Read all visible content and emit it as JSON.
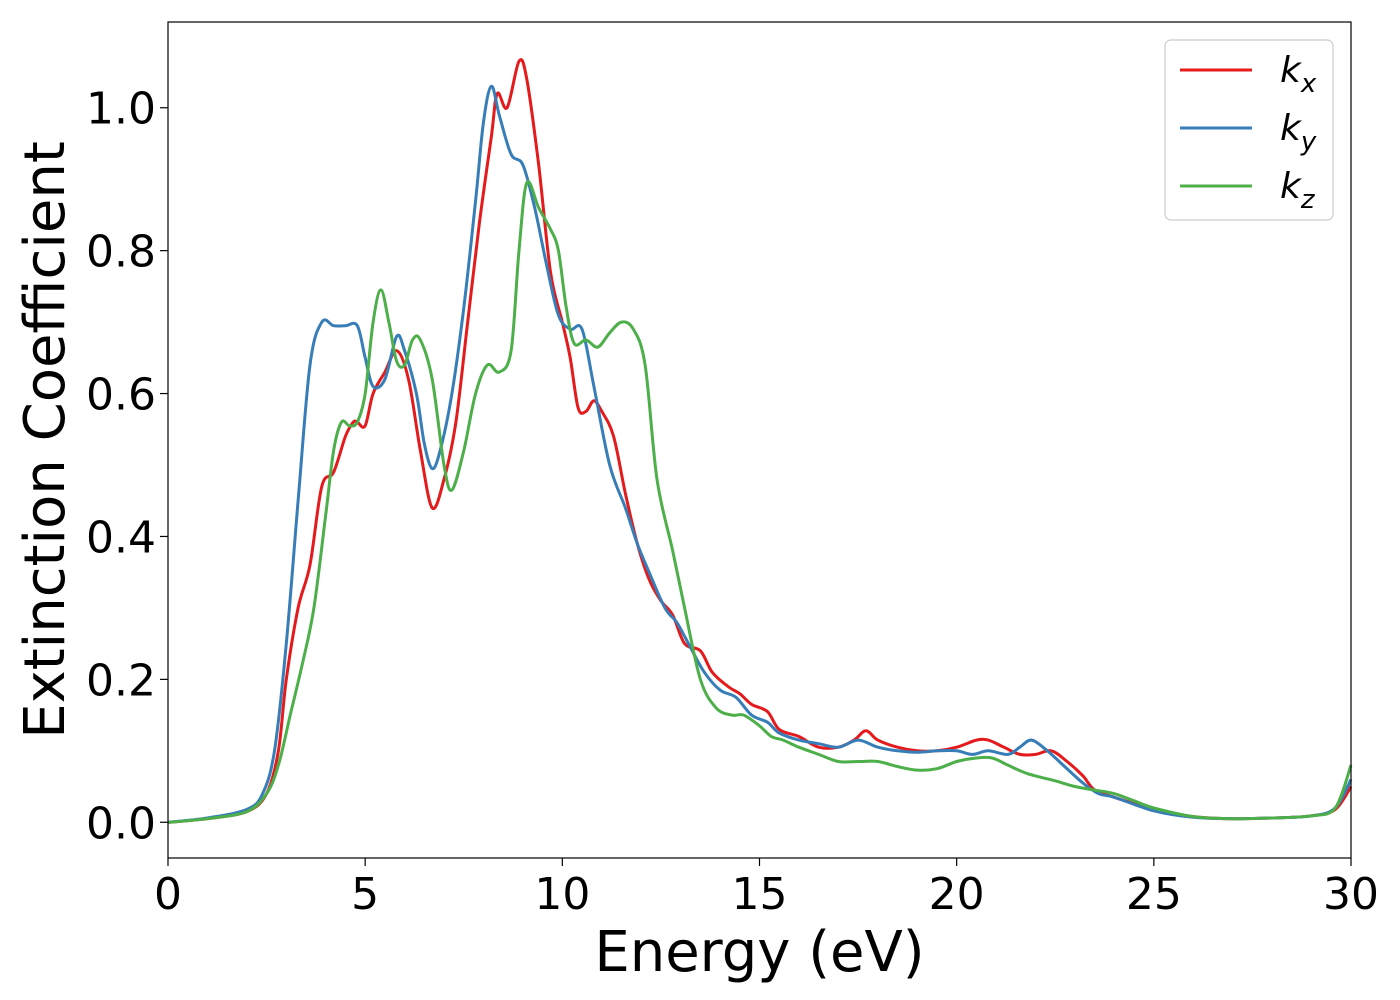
{
  "chart_data": {
    "type": "line",
    "xlabel": "Energy (eV)",
    "ylabel": "Extinction Coefficient",
    "xlim": [
      0,
      30
    ],
    "ylim": [
      -0.05,
      1.12
    ],
    "xticks": [
      0,
      5,
      10,
      15,
      20,
      25,
      30
    ],
    "xtick_labels": [
      "0",
      "5",
      "10",
      "15",
      "20",
      "25",
      "30"
    ],
    "yticks": [
      0.0,
      0.2,
      0.4,
      0.6,
      0.8,
      1.0
    ],
    "ytick_labels": [
      "0.0",
      "0.2",
      "0.4",
      "0.6",
      "0.8",
      "1.0"
    ],
    "grid": false,
    "legend_position": "top-right",
    "series": [
      {
        "name": "k_x",
        "label_base": "k",
        "label_sub": "x",
        "color": "#e41a1c",
        "points": [
          [
            0,
            0.0
          ],
          [
            1,
            0.005
          ],
          [
            2,
            0.015
          ],
          [
            2.5,
            0.04
          ],
          [
            2.8,
            0.1
          ],
          [
            3,
            0.2
          ],
          [
            3.3,
            0.3
          ],
          [
            3.6,
            0.36
          ],
          [
            3.9,
            0.47
          ],
          [
            4.2,
            0.49
          ],
          [
            4.5,
            0.54
          ],
          [
            4.7,
            0.56
          ],
          [
            4.8,
            0.56
          ],
          [
            5.0,
            0.555
          ],
          [
            5.2,
            0.6
          ],
          [
            5.5,
            0.63
          ],
          [
            5.8,
            0.66
          ],
          [
            6.1,
            0.62
          ],
          [
            6.4,
            0.52
          ],
          [
            6.7,
            0.44
          ],
          [
            7.0,
            0.48
          ],
          [
            7.3,
            0.56
          ],
          [
            7.6,
            0.7
          ],
          [
            7.9,
            0.84
          ],
          [
            8.2,
            0.96
          ],
          [
            8.35,
            1.02
          ],
          [
            8.6,
            1.0
          ],
          [
            8.9,
            1.065
          ],
          [
            9.1,
            1.04
          ],
          [
            9.4,
            0.92
          ],
          [
            9.7,
            0.77
          ],
          [
            10.0,
            0.7
          ],
          [
            10.2,
            0.65
          ],
          [
            10.4,
            0.58
          ],
          [
            10.6,
            0.575
          ],
          [
            10.8,
            0.59
          ],
          [
            11.0,
            0.575
          ],
          [
            11.3,
            0.54
          ],
          [
            11.6,
            0.46
          ],
          [
            11.9,
            0.39
          ],
          [
            12.2,
            0.34
          ],
          [
            12.5,
            0.31
          ],
          [
            12.8,
            0.29
          ],
          [
            13.1,
            0.25
          ],
          [
            13.5,
            0.24
          ],
          [
            13.8,
            0.21
          ],
          [
            14.2,
            0.19
          ],
          [
            14.5,
            0.18
          ],
          [
            14.8,
            0.165
          ],
          [
            15.2,
            0.155
          ],
          [
            15.5,
            0.13
          ],
          [
            16.0,
            0.12
          ],
          [
            16.5,
            0.105
          ],
          [
            17.0,
            0.105
          ],
          [
            17.4,
            0.115
          ],
          [
            17.7,
            0.128
          ],
          [
            18.0,
            0.115
          ],
          [
            18.5,
            0.105
          ],
          [
            19.0,
            0.1
          ],
          [
            19.5,
            0.1
          ],
          [
            20.0,
            0.105
          ],
          [
            20.5,
            0.115
          ],
          [
            20.8,
            0.115
          ],
          [
            21.2,
            0.105
          ],
          [
            21.6,
            0.095
          ],
          [
            22.0,
            0.095
          ],
          [
            22.4,
            0.1
          ],
          [
            22.8,
            0.085
          ],
          [
            23.2,
            0.065
          ],
          [
            23.5,
            0.045
          ],
          [
            24.0,
            0.035
          ],
          [
            25.0,
            0.018
          ],
          [
            26.0,
            0.008
          ],
          [
            27.0,
            0.005
          ],
          [
            28.0,
            0.006
          ],
          [
            29.0,
            0.009
          ],
          [
            29.6,
            0.018
          ],
          [
            30.0,
            0.05
          ]
        ]
      },
      {
        "name": "k_y",
        "label_base": "k",
        "label_sub": "y",
        "color": "#377eb8",
        "points": [
          [
            0,
            0.0
          ],
          [
            1,
            0.006
          ],
          [
            2,
            0.018
          ],
          [
            2.4,
            0.04
          ],
          [
            2.7,
            0.1
          ],
          [
            3.0,
            0.25
          ],
          [
            3.3,
            0.45
          ],
          [
            3.6,
            0.64
          ],
          [
            3.9,
            0.7
          ],
          [
            4.2,
            0.695
          ],
          [
            4.5,
            0.695
          ],
          [
            4.8,
            0.695
          ],
          [
            5.0,
            0.65
          ],
          [
            5.2,
            0.61
          ],
          [
            5.5,
            0.62
          ],
          [
            5.8,
            0.68
          ],
          [
            6.0,
            0.66
          ],
          [
            6.3,
            0.6
          ],
          [
            6.5,
            0.53
          ],
          [
            6.7,
            0.495
          ],
          [
            6.9,
            0.52
          ],
          [
            7.2,
            0.6
          ],
          [
            7.5,
            0.72
          ],
          [
            7.8,
            0.87
          ],
          [
            8.0,
            0.98
          ],
          [
            8.2,
            1.03
          ],
          [
            8.4,
            0.99
          ],
          [
            8.7,
            0.935
          ],
          [
            9.0,
            0.92
          ],
          [
            9.3,
            0.86
          ],
          [
            9.6,
            0.78
          ],
          [
            9.9,
            0.71
          ],
          [
            10.2,
            0.69
          ],
          [
            10.5,
            0.69
          ],
          [
            10.8,
            0.61
          ],
          [
            11.2,
            0.5
          ],
          [
            11.6,
            0.44
          ],
          [
            11.9,
            0.39
          ],
          [
            12.2,
            0.35
          ],
          [
            12.6,
            0.3
          ],
          [
            12.9,
            0.28
          ],
          [
            13.2,
            0.25
          ],
          [
            13.6,
            0.21
          ],
          [
            14.0,
            0.185
          ],
          [
            14.4,
            0.175
          ],
          [
            14.8,
            0.15
          ],
          [
            15.2,
            0.14
          ],
          [
            15.5,
            0.125
          ],
          [
            16.0,
            0.115
          ],
          [
            16.5,
            0.11
          ],
          [
            17.0,
            0.105
          ],
          [
            17.5,
            0.115
          ],
          [
            18.0,
            0.105
          ],
          [
            18.5,
            0.1
          ],
          [
            19.0,
            0.098
          ],
          [
            19.5,
            0.1
          ],
          [
            20.0,
            0.1
          ],
          [
            20.4,
            0.095
          ],
          [
            20.8,
            0.1
          ],
          [
            21.3,
            0.095
          ],
          [
            21.6,
            0.105
          ],
          [
            21.9,
            0.115
          ],
          [
            22.3,
            0.1
          ],
          [
            22.7,
            0.08
          ],
          [
            23.2,
            0.055
          ],
          [
            23.6,
            0.04
          ],
          [
            24.0,
            0.035
          ],
          [
            25.0,
            0.016
          ],
          [
            26.0,
            0.007
          ],
          [
            27.0,
            0.005
          ],
          [
            28.0,
            0.006
          ],
          [
            29.0,
            0.009
          ],
          [
            29.6,
            0.02
          ],
          [
            30.0,
            0.06
          ]
        ]
      },
      {
        "name": "k_z",
        "label_base": "k",
        "label_sub": "z",
        "color": "#4daf4a",
        "points": [
          [
            0,
            0.0
          ],
          [
            1,
            0.005
          ],
          [
            2,
            0.015
          ],
          [
            2.5,
            0.04
          ],
          [
            2.8,
            0.08
          ],
          [
            3.1,
            0.15
          ],
          [
            3.4,
            0.22
          ],
          [
            3.7,
            0.3
          ],
          [
            4.0,
            0.43
          ],
          [
            4.2,
            0.52
          ],
          [
            4.4,
            0.56
          ],
          [
            4.6,
            0.555
          ],
          [
            4.8,
            0.56
          ],
          [
            5.0,
            0.6
          ],
          [
            5.2,
            0.7
          ],
          [
            5.4,
            0.745
          ],
          [
            5.6,
            0.7
          ],
          [
            5.8,
            0.645
          ],
          [
            6.0,
            0.64
          ],
          [
            6.2,
            0.675
          ],
          [
            6.4,
            0.675
          ],
          [
            6.7,
            0.62
          ],
          [
            7.0,
            0.5
          ],
          [
            7.2,
            0.465
          ],
          [
            7.5,
            0.52
          ],
          [
            7.8,
            0.6
          ],
          [
            8.1,
            0.64
          ],
          [
            8.4,
            0.63
          ],
          [
            8.7,
            0.66
          ],
          [
            8.9,
            0.8
          ],
          [
            9.1,
            0.895
          ],
          [
            9.4,
            0.86
          ],
          [
            9.7,
            0.83
          ],
          [
            9.9,
            0.8
          ],
          [
            10.1,
            0.72
          ],
          [
            10.3,
            0.67
          ],
          [
            10.6,
            0.675
          ],
          [
            10.9,
            0.665
          ],
          [
            11.2,
            0.685
          ],
          [
            11.5,
            0.7
          ],
          [
            11.8,
            0.69
          ],
          [
            12.1,
            0.64
          ],
          [
            12.4,
            0.48
          ],
          [
            12.8,
            0.38
          ],
          [
            13.1,
            0.3
          ],
          [
            13.5,
            0.2
          ],
          [
            13.9,
            0.16
          ],
          [
            14.3,
            0.15
          ],
          [
            14.6,
            0.15
          ],
          [
            15.0,
            0.135
          ],
          [
            15.3,
            0.12
          ],
          [
            15.6,
            0.115
          ],
          [
            16.0,
            0.105
          ],
          [
            16.5,
            0.095
          ],
          [
            17.0,
            0.085
          ],
          [
            17.5,
            0.085
          ],
          [
            18.0,
            0.085
          ],
          [
            18.5,
            0.078
          ],
          [
            19.0,
            0.073
          ],
          [
            19.5,
            0.075
          ],
          [
            20.0,
            0.085
          ],
          [
            20.5,
            0.09
          ],
          [
            20.9,
            0.09
          ],
          [
            21.3,
            0.08
          ],
          [
            21.8,
            0.068
          ],
          [
            22.5,
            0.058
          ],
          [
            23.0,
            0.05
          ],
          [
            23.5,
            0.045
          ],
          [
            24.0,
            0.04
          ],
          [
            24.5,
            0.03
          ],
          [
            25.0,
            0.02
          ],
          [
            26.0,
            0.008
          ],
          [
            27.0,
            0.005
          ],
          [
            28.0,
            0.006
          ],
          [
            29.0,
            0.009
          ],
          [
            29.6,
            0.02
          ],
          [
            30.0,
            0.08
          ]
        ]
      }
    ]
  }
}
